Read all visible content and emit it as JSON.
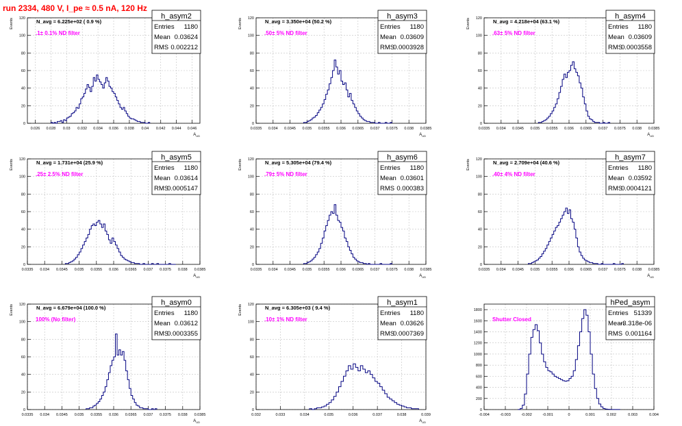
{
  "run_title": "run 2334,   480 V, I_pe ≈ 0.5 nA, 120 Hz",
  "colors": {
    "title": "#ff0000",
    "hist": "#000080",
    "label": "#ff00ff",
    "grid": "#c0c0c0",
    "text": "#000000"
  },
  "chart_data": [
    {
      "type": "histogram",
      "name": "h_asym2",
      "stats": {
        "entries": "1180",
        "mean": "0.03624",
        "rms": "0.002212"
      },
      "annotation": "N_avg = 6.225e+02 ( 0.9 %)",
      "label": ".1± 0.1% ND filter",
      "ylabel": "Events",
      "xlabel": "A_UD",
      "xlim": [
        0.025,
        0.047
      ],
      "ylim": [
        0,
        120
      ],
      "xticks": [
        "0.026",
        "0.028",
        "0.03",
        "0.032",
        "0.034",
        "0.036",
        "0.038",
        "0.04",
        "0.042",
        "0.044",
        "0.046"
      ],
      "yticks": [
        "0",
        "20",
        "40",
        "60",
        "80",
        "100",
        "120"
      ],
      "bins": [
        0.028,
        0.0405,
        0.0002,
        [
          1,
          0,
          1,
          0,
          2,
          2,
          3,
          1,
          4,
          3,
          6,
          7,
          8,
          11,
          12,
          14,
          18,
          17,
          22,
          28,
          30,
          34,
          39,
          44,
          41,
          36,
          42,
          52,
          48,
          55,
          50,
          47,
          44,
          40,
          46,
          52,
          48,
          42,
          40,
          36,
          34,
          30,
          26,
          22,
          18,
          16,
          18,
          14,
          11,
          8,
          6,
          5,
          5,
          4,
          3,
          2,
          2,
          1,
          1,
          1,
          0,
          0,
          1
        ]
      ]
    },
    {
      "type": "histogram",
      "name": "h_asym3",
      "stats": {
        "entries": "1180",
        "mean": "0.03609",
        "rms": "0.0003928"
      },
      "annotation": "N_avg = 3.350e+04 (50.2 %)",
      "label": ".50± 5% ND filter",
      "ylabel": "Events",
      "xlabel": "A_UD",
      "xlim": [
        0.0335,
        0.0385
      ],
      "ylim": [
        0,
        120
      ],
      "xticks": [
        "0.0335",
        "0.034",
        "0.0345",
        "0.035",
        "0.0355",
        "0.036",
        "0.0365",
        "0.037",
        "0.0375",
        "0.038",
        "0.0385"
      ],
      "yticks": [
        "0",
        "20",
        "40",
        "60",
        "80",
        "100",
        "120"
      ],
      "bins": [
        0.0349,
        0.0375,
        5e-05,
        [
          1,
          1,
          2,
          3,
          4,
          6,
          7,
          9,
          12,
          15,
          18,
          22,
          27,
          33,
          38,
          45,
          52,
          60,
          72,
          64,
          56,
          60,
          48,
          44,
          46,
          38,
          30,
          34,
          26,
          22,
          18,
          14,
          11,
          8,
          6,
          4,
          3,
          2,
          2,
          1,
          1,
          1,
          0,
          0,
          1,
          0,
          0,
          0,
          1,
          0,
          0,
          1
        ]
      ]
    },
    {
      "type": "histogram",
      "name": "h_asym4",
      "stats": {
        "entries": "1180",
        "mean": "0.03609",
        "rms": "0.0003558"
      },
      "annotation": "N_avg = 4.218e+04 (63.1 %)",
      "label": ".63± 5% ND filter",
      "ylabel": "Events",
      "xlabel": "A_UD",
      "xlim": [
        0.0335,
        0.0385
      ],
      "ylim": [
        0,
        120
      ],
      "xticks": [
        "0.0335",
        "0.034",
        "0.0345",
        "0.035",
        "0.0355",
        "0.036",
        "0.0365",
        "0.037",
        "0.0375",
        "0.038",
        "0.0385"
      ],
      "yticks": [
        "0",
        "20",
        "40",
        "60",
        "80",
        "100",
        "120"
      ],
      "bins": [
        0.0351,
        0.0372,
        5e-05,
        [
          1,
          1,
          2,
          3,
          4,
          6,
          8,
          11,
          14,
          18,
          22,
          28,
          35,
          42,
          50,
          56,
          52,
          58,
          60,
          66,
          70,
          62,
          58,
          54,
          46,
          40,
          30,
          22,
          14,
          8,
          5,
          4,
          2,
          1,
          1,
          1,
          0,
          0,
          1,
          0,
          0,
          1
        ]
      ]
    },
    {
      "type": "histogram",
      "name": "h_asym5",
      "stats": {
        "entries": "1180",
        "mean": "0.03614",
        "rms": "0.0005147"
      },
      "annotation": "N_avg = 1.731e+04 (25.9 %)",
      "label": ".25± 2.5% ND filter",
      "ylabel": "Events",
      "xlabel": "A_UD",
      "xlim": [
        0.0335,
        0.0385
      ],
      "ylim": [
        0,
        120
      ],
      "xticks": [
        "0.0335",
        "0.034",
        "0.0345",
        "0.035",
        "0.0355",
        "0.036",
        "0.0365",
        "0.037",
        "0.0375",
        "0.038",
        "0.0385"
      ],
      "yticks": [
        "0",
        "20",
        "40",
        "60",
        "80",
        "100",
        "120"
      ],
      "bins": [
        0.0346,
        0.0378,
        5e-05,
        [
          1,
          1,
          2,
          3,
          4,
          6,
          8,
          11,
          14,
          18,
          22,
          26,
          30,
          34,
          40,
          44,
          46,
          44,
          48,
          50,
          46,
          42,
          46,
          38,
          34,
          28,
          24,
          30,
          26,
          22,
          18,
          14,
          10,
          8,
          6,
          5,
          4,
          3,
          2,
          2,
          1,
          1,
          1,
          0,
          0,
          1,
          0,
          0,
          0,
          0,
          1,
          0,
          0,
          1,
          0,
          0,
          0,
          0,
          0,
          0,
          1,
          0,
          0,
          0
        ]
      ]
    },
    {
      "type": "histogram",
      "name": "h_asym6",
      "stats": {
        "entries": "1180",
        "mean": "0.03601",
        "rms": "0.000383"
      },
      "annotation": "N_avg = 5.305e+04 (79.4 %)",
      "label": ".79± 5% ND filter",
      "ylabel": "Events",
      "xlabel": "A_UD",
      "xlim": [
        0.0335,
        0.0385
      ],
      "ylim": [
        0,
        120
      ],
      "xticks": [
        "0.0335",
        "0.034",
        "0.0345",
        "0.035",
        "0.0355",
        "0.036",
        "0.0365",
        "0.037",
        "0.0375",
        "0.038",
        "0.0385"
      ],
      "yticks": [
        "0",
        "20",
        "40",
        "60",
        "80",
        "100",
        "120"
      ],
      "bins": [
        0.0349,
        0.0375,
        5e-05,
        [
          1,
          1,
          2,
          3,
          4,
          6,
          8,
          11,
          14,
          18,
          24,
          30,
          38,
          44,
          50,
          56,
          60,
          58,
          68,
          56,
          50,
          48,
          42,
          38,
          30,
          26,
          20,
          16,
          12,
          8,
          6,
          4,
          3,
          2,
          2,
          1,
          1,
          0,
          1,
          0,
          0,
          0,
          0,
          0,
          0,
          1,
          0,
          0,
          0,
          0,
          0,
          1
        ]
      ]
    },
    {
      "type": "histogram",
      "name": "h_asym7",
      "stats": {
        "entries": "1180",
        "mean": "0.03592",
        "rms": "0.0004121"
      },
      "annotation": "N_avg = 2.709e+04 (40.6 %)",
      "label": ".40± 4% ND filter",
      "ylabel": "Events",
      "xlabel": "A_UD",
      "xlim": [
        0.0335,
        0.0385
      ],
      "ylim": [
        0,
        120
      ],
      "xticks": [
        "0.0335",
        "0.034",
        "0.0345",
        "0.035",
        "0.0355",
        "0.036",
        "0.0365",
        "0.037",
        "0.0375",
        "0.038",
        "0.0385"
      ],
      "yticks": [
        "0",
        "20",
        "40",
        "60",
        "80",
        "100",
        "120"
      ],
      "bins": [
        0.0348,
        0.0376,
        5e-05,
        [
          1,
          1,
          2,
          3,
          4,
          5,
          7,
          9,
          12,
          15,
          18,
          22,
          26,
          30,
          34,
          38,
          42,
          44,
          48,
          52,
          56,
          60,
          64,
          58,
          62,
          52,
          48,
          40,
          30,
          20,
          14,
          10,
          7,
          5,
          4,
          3,
          2,
          2,
          1,
          1,
          1,
          0,
          0,
          1,
          0,
          0,
          0,
          0,
          0,
          0,
          1,
          0,
          0,
          0,
          0,
          1
        ]
      ]
    },
    {
      "type": "histogram",
      "name": "h_asym0",
      "stats": {
        "entries": "1180",
        "mean": "0.03612",
        "rms": "0.0003355"
      },
      "annotation": "N_avg = 6.679e+04 (100.0 %)",
      "label": "100% (No filter)",
      "ylabel": "Events",
      "xlabel": "A_UD",
      "xlim": [
        0.0335,
        0.0385
      ],
      "ylim": [
        0,
        120
      ],
      "xticks": [
        "0.0335",
        "0.034",
        "0.0345",
        "0.035",
        "0.0355",
        "0.036",
        "0.0365",
        "0.037",
        "0.0375",
        "0.038",
        "0.0385"
      ],
      "yticks": [
        "0",
        "20",
        "40",
        "60",
        "80",
        "100",
        "120"
      ],
      "bins": [
        0.0352,
        0.0372,
        5e-05,
        [
          1,
          1,
          2,
          2,
          4,
          5,
          7,
          9,
          12,
          16,
          20,
          26,
          34,
          42,
          50,
          56,
          60,
          86,
          62,
          68,
          62,
          66,
          56,
          44,
          34,
          24,
          16,
          12,
          8,
          5,
          4,
          2,
          2,
          1,
          1,
          1,
          0,
          0,
          1,
          0,
          1
        ]
      ]
    },
    {
      "type": "histogram",
      "name": "h_asym1",
      "stats": {
        "entries": "1180",
        "mean": "0.03626",
        "rms": "0.0007369"
      },
      "annotation": "N_avg = 6.305e+03 ( 9.4 %)",
      "label": ".10± 1% ND filter",
      "ylabel": "Events",
      "xlabel": "A_UD",
      "xlim": [
        0.032,
        0.039
      ],
      "ylim": [
        0,
        120
      ],
      "xticks": [
        "0.032",
        "0.033",
        "0.034",
        "0.035",
        "0.036",
        "0.037",
        "0.038",
        "0.039"
      ],
      "yticks": [
        "0",
        "20",
        "40",
        "60",
        "80",
        "100",
        "120"
      ],
      "bins": [
        0.0342,
        0.0385,
        0.0001,
        [
          1,
          0,
          1,
          2,
          2,
          3,
          4,
          6,
          8,
          11,
          15,
          20,
          26,
          32,
          38,
          44,
          50,
          46,
          52,
          48,
          44,
          50,
          46,
          42,
          44,
          40,
          36,
          32,
          30,
          26,
          22,
          18,
          14,
          12,
          10,
          8,
          6,
          5,
          4,
          3,
          2,
          2,
          1,
          1,
          1
        ]
      ]
    },
    {
      "type": "histogram",
      "name": "hPed_asym",
      "stats": {
        "entries": "51339",
        "mean": "-3.318e-06",
        "rms": "0.001164"
      },
      "annotation": "",
      "label": "Shutter Closed",
      "ylabel": "",
      "xlabel": "",
      "xlim": [
        -0.004,
        0.004
      ],
      "ylim": [
        0,
        1900
      ],
      "xticks": [
        "-0.004",
        "-0.003",
        "-0.002",
        "-0.001",
        "0",
        "0.001",
        "0.002",
        "0.003",
        "0.004"
      ],
      "yticks": [
        "0",
        "200",
        "400",
        "600",
        "800",
        "1000",
        "1200",
        "1400",
        "1600",
        "1800"
      ],
      "bins": [
        -0.0024,
        0.0024,
        0.0001,
        [
          2,
          20,
          80,
          280,
          640,
          1000,
          1300,
          1440,
          1530,
          1420,
          1200,
          1000,
          860,
          760,
          700,
          680,
          640,
          600,
          580,
          560,
          540,
          520,
          510,
          520,
          560,
          600,
          700,
          900,
          1150,
          1400,
          1640,
          1800,
          1700,
          1400,
          1000,
          640,
          380,
          200,
          100,
          50,
          20,
          10,
          5,
          3,
          2,
          1,
          1,
          1
        ]
      ]
    }
  ]
}
